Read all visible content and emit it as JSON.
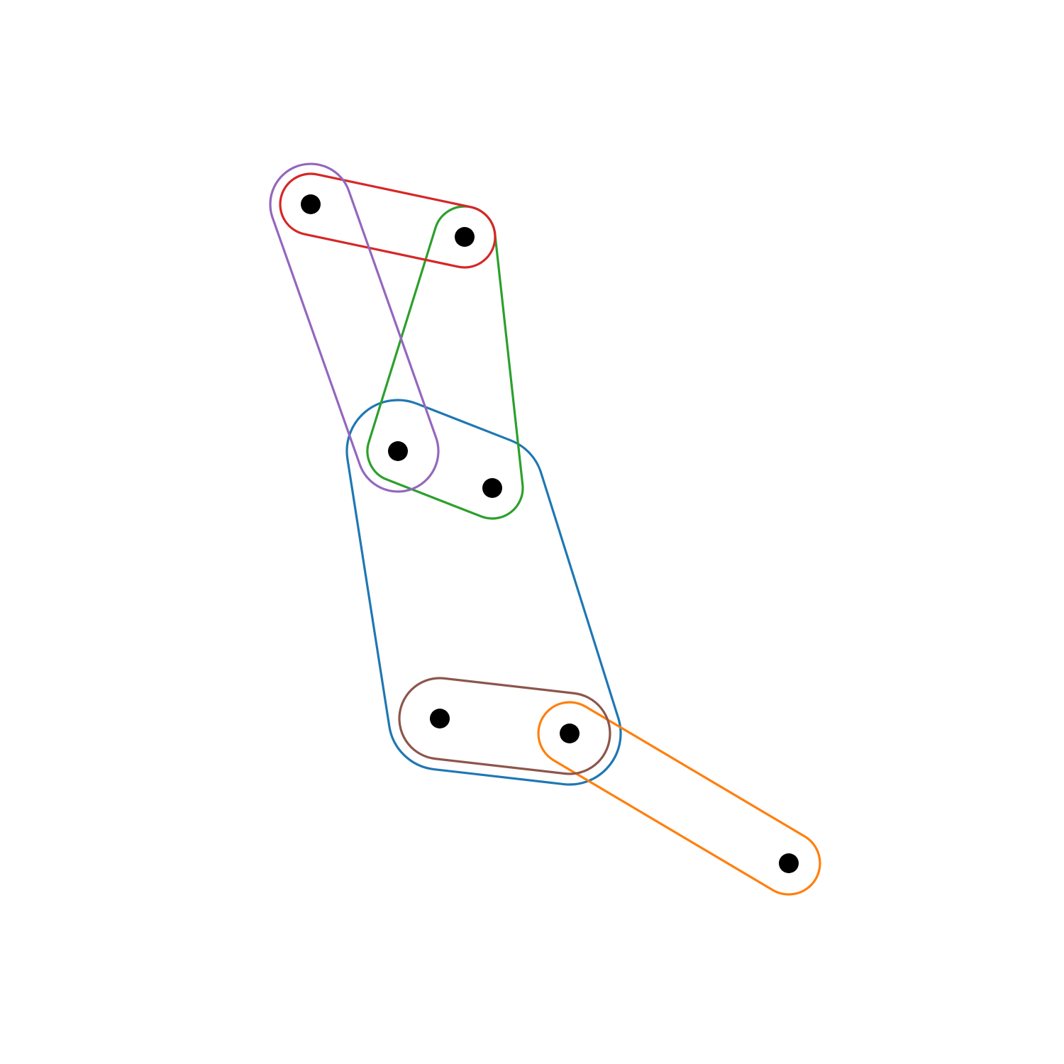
{
  "diagram": {
    "type": "hypergraph",
    "nodes": [
      {
        "id": "n1"
      },
      {
        "id": "n2"
      },
      {
        "id": "n3"
      },
      {
        "id": "n4"
      },
      {
        "id": "n5"
      },
      {
        "id": "n6"
      },
      {
        "id": "n7"
      }
    ],
    "hyperedges": [
      {
        "id": "blue",
        "color": "#1f77b4",
        "members": [
          "n3",
          "n4",
          "n5",
          "n6"
        ]
      },
      {
        "id": "orange",
        "color": "#ff7f0e",
        "members": [
          "n6",
          "n7"
        ]
      },
      {
        "id": "green",
        "color": "#2ca02c",
        "members": [
          "n2",
          "n3",
          "n4"
        ]
      },
      {
        "id": "red",
        "color": "#d62728",
        "members": [
          "n1",
          "n2"
        ]
      },
      {
        "id": "purple",
        "color": "#9467bd",
        "members": [
          "n1",
          "n3"
        ]
      },
      {
        "id": "brown",
        "color": "#8c564b",
        "members": [
          "n5",
          "n6"
        ]
      }
    ]
  }
}
